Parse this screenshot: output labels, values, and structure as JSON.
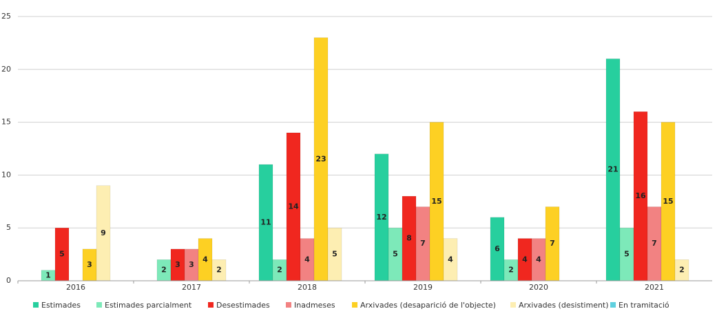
{
  "chart_data": {
    "type": "bar",
    "categories": [
      "2016",
      "2017",
      "2018",
      "2019",
      "2020",
      "2021"
    ],
    "series": [
      {
        "name": "Estimades",
        "color": "#27cf9e",
        "values": [
          0,
          0,
          11,
          12,
          6,
          21
        ]
      },
      {
        "name": "Estimades parcialment",
        "color": "#7de9b9",
        "values": [
          1,
          2,
          2,
          5,
          2,
          5
        ]
      },
      {
        "name": "Desestimades",
        "color": "#f0271f",
        "values": [
          5,
          3,
          14,
          8,
          4,
          16
        ]
      },
      {
        "name": "Inadmeses",
        "color": "#f28282",
        "values": [
          0,
          3,
          4,
          7,
          4,
          7
        ]
      },
      {
        "name": "Arxivades (desaparició de l'objecte)",
        "color": "#fdd023",
        "values": [
          3,
          4,
          23,
          15,
          7,
          15
        ]
      },
      {
        "name": "Arxivades (desistiment)",
        "color": "#fdeeb2",
        "values": [
          9,
          2,
          5,
          4,
          0,
          2
        ]
      },
      {
        "name": "En tramitació",
        "color": "#5fd0df",
        "values": [
          0,
          0,
          0,
          0,
          0,
          0
        ]
      }
    ],
    "ylim": [
      0,
      25
    ],
    "yticks": [
      0,
      5,
      10,
      15,
      20,
      25
    ],
    "grid": true
  }
}
